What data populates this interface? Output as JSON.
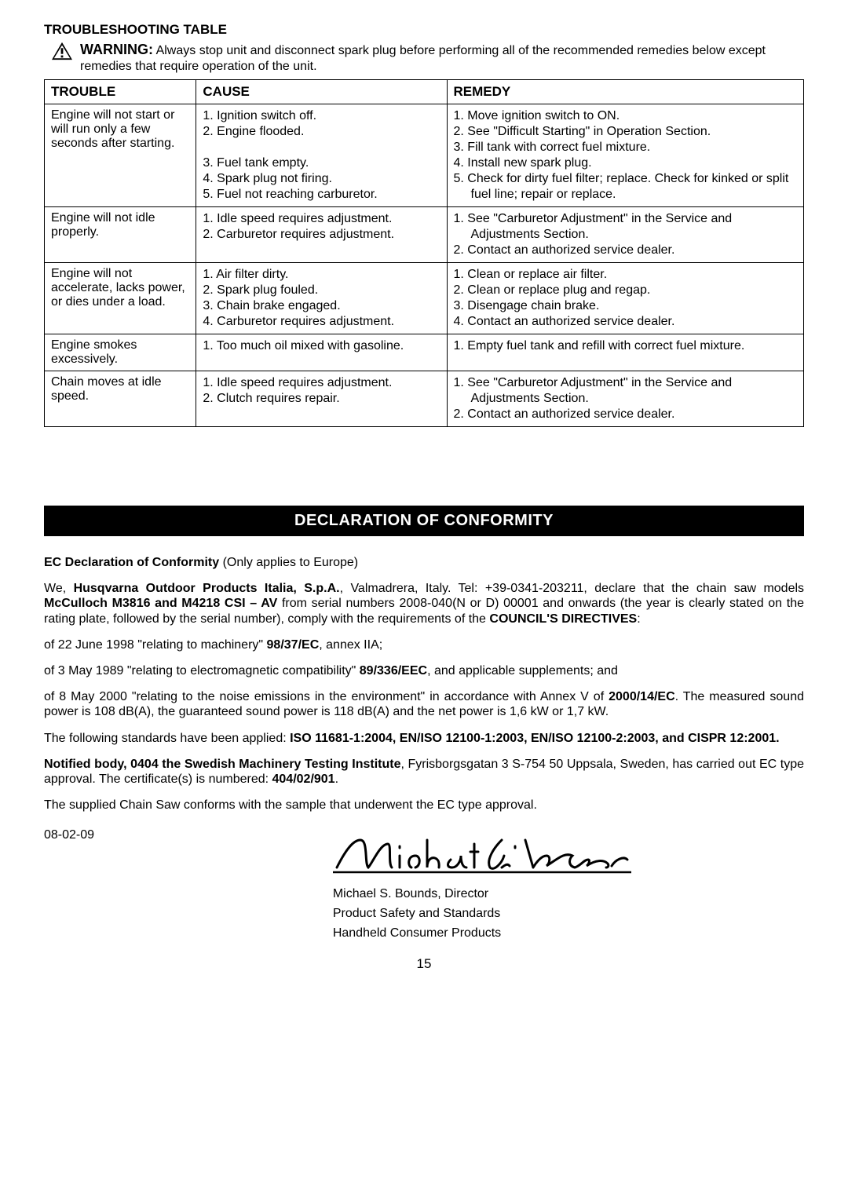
{
  "section_title": "TROUBLESHOOTING TABLE",
  "warning_label": "WARNING:",
  "warning_text": "Always stop unit and disconnect spark plug before performing all of the recommended remedies below except remedies that require operation of the unit.",
  "table": {
    "headers": {
      "trouble": "TROUBLE",
      "cause": "CAUSE",
      "remedy": "REMEDY"
    },
    "rows": [
      {
        "trouble": "Engine will not start or will run only a few seconds after starting.",
        "causes": [
          "1. Ignition switch off.",
          "2. Engine flooded.",
          " ",
          "3. Fuel tank empty.",
          "4. Spark plug not firing.",
          "5. Fuel not reaching carburetor."
        ],
        "remedies": [
          "1. Move ignition switch to ON.",
          "2. See \"Difficult Starting\" in Operation Section.",
          "3. Fill tank with correct fuel mixture.",
          "4. Install new spark plug.",
          "5. Check for dirty fuel filter; replace. Check for kinked or split fuel line; repair or replace."
        ]
      },
      {
        "trouble": "Engine will not idle properly.",
        "causes": [
          "1. Idle speed  requires adjustment.",
          "2. Carburetor requires adjustment."
        ],
        "remedies": [
          "1. See \"Carburetor Adjustment\" in the Service and Adjustments Section.",
          "2. Contact an authorized service dealer."
        ]
      },
      {
        "trouble": "Engine will not accelerate, lacks power, or dies under a load.",
        "causes": [
          "1. Air filter dirty.",
          "2. Spark plug fouled.",
          "3. Chain brake engaged.",
          "4. Carburetor requires adjustment."
        ],
        "remedies": [
          "1. Clean or replace air filter.",
          "2. Clean or replace plug and regap.",
          "3. Disengage chain brake.",
          "4. Contact an authorized service dealer."
        ]
      },
      {
        "trouble": "Engine smokes excessively.",
        "causes": [
          "1. Too much oil mixed with gasoline."
        ],
        "remedies": [
          "1. Empty fuel tank and refill with correct fuel mixture."
        ]
      },
      {
        "trouble": "Chain moves at idle speed.",
        "causes": [
          "1. Idle speed  requires adjustment.",
          "2. Clutch requires repair."
        ],
        "remedies": [
          "1. See \"Carburetor Adjustment\" in the Service and Adjustments Section.",
          "2. Contact an authorized service dealer."
        ]
      }
    ]
  },
  "declaration": {
    "banner": "DECLARATION OF CONFORMITY",
    "ec_title": "EC Declaration of Conformity",
    "ec_suffix": " (Only applies to Europe)",
    "p1_pre": "We, ",
    "p1_company": "Husqvarna Outdoor Products Italia, S.p.A.",
    "p1_mid1": ", Valmadrera, Italy. Tel: +39-0341-203211, declare that the chain saw models ",
    "p1_models": "McCulloch M3816 and M4218 CSI – AV",
    "p1_mid2": " from serial numbers 2008-040(N or D) 00001 and onwards (the year is clearly stated on the rating plate, followed by the serial number), comply with the requirements of the ",
    "p1_directives": "COUNCIL'S DIRECTIVES",
    "p1_end": ":",
    "p2_pre": "of 22 June 1998 \"relating to machinery\" ",
    "p2_bold": "98/37/EC",
    "p2_end": ", annex IIA;",
    "p3_pre": "of 3 May 1989 \"relating to electromagnetic compatibility\" ",
    "p3_bold": "89/336/EEC",
    "p3_end": ", and applicable supplements; and",
    "p4_pre": "of 8 May 2000 \"relating to the noise emissions in the environment\" in accordance with Annex V of ",
    "p4_bold": "2000/14/EC",
    "p4_end": ". The measured sound power is 108 dB(A), the guaranteed sound power is 118 dB(A) and the net power is 1,6 kW or 1,7 kW.",
    "p5_pre": "The following standards have been applied: ",
    "p5_bold": "ISO 11681-1:2004, EN/ISO 12100-1:2003, EN/ISO 12100-2:2003, and CISPR 12:2001.",
    "p6_bold": "Notified body, 0404 the Swedish Machinery Testing Institute",
    "p6_mid": ", Fyrisborgsgatan 3 S-754 50 Uppsala, Sweden, has carried out EC type approval. The certificate(s) is numbered: ",
    "p6_cert": "404/02/901",
    "p6_end": ".",
    "p7": "The supplied Chain Saw conforms with the sample that underwent the EC type approval.",
    "date": "08-02-09",
    "signer_name": "Michael S. Bounds, Director",
    "signer_title1": "Product Safety and Standards",
    "signer_title2": "Handheld Consumer Products"
  },
  "page_number": "15",
  "colors": {
    "background": "#ffffff",
    "text": "#000000",
    "banner_bg": "#000000",
    "banner_text": "#ffffff",
    "border": "#000000"
  }
}
